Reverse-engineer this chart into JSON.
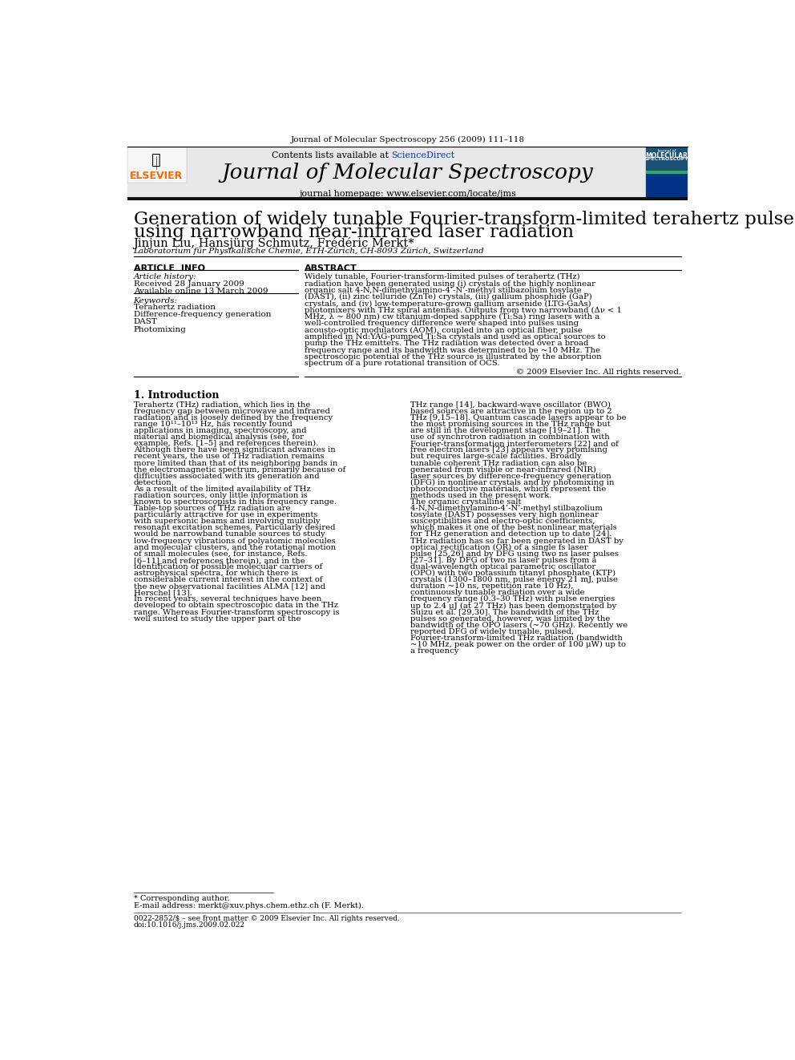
{
  "page_title": "Journal of Molecular Spectroscopy 256 (2009) 111–118",
  "journal_name": "Journal of Molecular Spectroscopy",
  "journal_homepage": "journal homepage: www.elsevier.com/locate/jms",
  "contents_text": "Contents lists available at ScienceDirect",
  "paper_title_line1": "Generation of widely tunable Fourier-transform-limited terahertz pulses",
  "paper_title_line2": "using narrowband near-infrared laser radiation",
  "authors": "Jinjun Liu, Hansjürg Schmutz, Frédéric Merkt*",
  "affiliation": "Laboratorium für Physikalische Chemie, ETH-Zürich, CH-8093 Zürich, Switzerland",
  "article_info_header": "ARTICLE  INFO",
  "abstract_header": "ABSTRACT",
  "article_history_label": "Article history:",
  "received_text": "Received 28 January 2009",
  "available_text": "Available online 13 March 2009",
  "keywords_label": "Keywords:",
  "keywords": [
    "Terahertz radiation",
    "Difference-frequency generation",
    "DAST",
    "Photomixing"
  ],
  "abstract_text": "Widely tunable, Fourier-transform-limited pulses of terahertz (THz) radiation have been generated using (i) crystals of the highly nonlinear organic salt 4-N,N-dimethylamino-4’-N’-methyl stilbazolium tosylate (DAST), (ii) zinc telluride (ZnTe) crystals, (iii) gallium phosphide (GaP) crystals, and (iv) low-temperature-grown gallium arsenide (LTG-GaAs) photomixers with THz spiral antennas. Outputs from two narrowband (Δν < 1 MHz, λ ~ 800 nm) cw titanium-doped sapphire (Ti:Sa) ring lasers with a well-controlled frequency difference were shaped into pulses using acousto-optic modulators (AOM), coupled into an optical fiber, pulse amplified in Nd:YAG-pumped Ti:Sa crystals and used as optical sources to pump the THz emitters. The THz radiation was detected over a broad frequency range and its bandwidth was determined to be ~10 MHz. The spectroscopic potential of the THz source is illustrated by the absorption spectrum of a pure rotational transition of OCS.",
  "copyright_text": "© 2009 Elsevier Inc. All rights reserved.",
  "section1_title": "1. Introduction",
  "intro_col1": "    Terahertz (THz) radiation, which lies in the frequency gap between microwave and infrared radiation and is loosely defined by the frequency range 10¹¹–10¹³ Hz, has recently found applications in imaging, spectroscopy, and material and biomedical analysis (see, for example, Refs. [1–5] and references therein). Although there have been significant advances in recent years, the use of THz radiation remains more limited than that of its neighboring bands in the electromagnetic spectrum, primarily because of difficulties associated with its generation and detection.\n    As a result of the limited availability of THz radiation sources, only little information is known to spectroscopists in this frequency range. Table-top sources of THz radiation are particularly attractive for use in experiments with supersonic beams and involving multiply resonant excitation schemes. Particularly desired would be narrowband tunable sources to study low-frequency vibrations of polyatomic molecules and molecular clusters, and the rotational motion of small molecules (see, for instance, Refs. [6–11] and references therein), and in the identification of possible molecular carriers of astrophysical spectra, for which there is considerable current interest in the context of the new observational facilities ALMA [12] and Herschel [13].\n    In recent years, several techniques have been developed to obtain spectroscopic data in the THz range. Whereas Fourier-transform spectroscopy is well suited to study the upper part of the",
  "intro_col2": "THz range [14], backward-wave oscillator (BWO) based sources are attractive in the region up to 2 THz [9,15–18]. Quantum cascade lasers appear to be the most promising sources in the THz range but are still in the development stage [19–21]. The use of synchrotron radiation in combination with Fourier-transformation interferometers [22] and of free electron lasers [23] appears very promising but requires large-scale facilities. Broadly tunable coherent THz radiation can also be generated from visible or near-infrared (NIR) laser sources by difference-frequency generation (DFG) in nonlinear crystals and by photomixing in photoconductive materials, which represent the methods used in the present work.\n    The organic crystalline salt 4-N,N-dimethylamino-4’-N’-methyl stilbazolium tosylate (DAST) possesses very high nonlinear susceptibilities and electro-optic coefficients, which makes it one of the best nonlinear materials for THz generation and detection up to date [24]. THz radiation has so far been generated in DAST by optical rectification (OR) of a single fs laser pulse [25,26] and by DFG using two ns laser pulses [27–31]. By DFG of two ns laser pulses from a dual-wavelength optical parametric oscillator (OPO) with two potassium titanyl phosphate (KTP) crystals (1300–1800 nm, pulse energy 21 mJ, pulse duration ~10 ns, repetition rate 10 Hz), continuously tunable radiation over a wide frequency range (0.3–30 THz) with pulse energies up to 2.4 μJ (at 27 THz) has been demonstrated by Suizu et al. [29,30]. The bandwidth of the THz pulses so generated, however, was limited by the bandwidth of the OPO lasers (~70 GHz). Recently we reported DFG of widely tunable, pulsed, Fourier-transform-limited THz radiation (bandwidth ~10 MHz, peak power on the order of 100 μW) up to a frequency",
  "footnote_star": "* Corresponding author.",
  "footnote_email": "E-mail address: merkt@xuv.phys.chem.ethz.ch (F. Merkt).",
  "footer_text": "0022-2852/$ – see front matter © 2009 Elsevier Inc. All rights reserved.",
  "footer_doi": "doi:10.1016/j.jms.2009.02.022",
  "elsevier_color": "#ff6600",
  "link_color": "#0033cc",
  "banner_bg": "#e8e8e8",
  "black_bar": "#111111"
}
